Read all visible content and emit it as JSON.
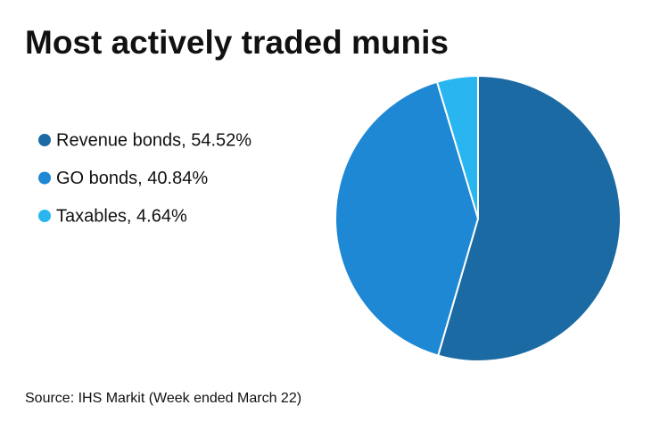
{
  "chart_data": {
    "type": "pie",
    "title": "Most actively traded munis",
    "categories": [
      "Revenue bonds, 54.52%",
      "GO bonds, 40.84%",
      "Taxables, 4.64%"
    ],
    "values": [
      54.52,
      40.84,
      4.64
    ],
    "colors": [
      "#1c6aa3",
      "#1e88d4",
      "#29b6f0"
    ],
    "source": "Source: IHS Markit (Week ended March 22)"
  }
}
